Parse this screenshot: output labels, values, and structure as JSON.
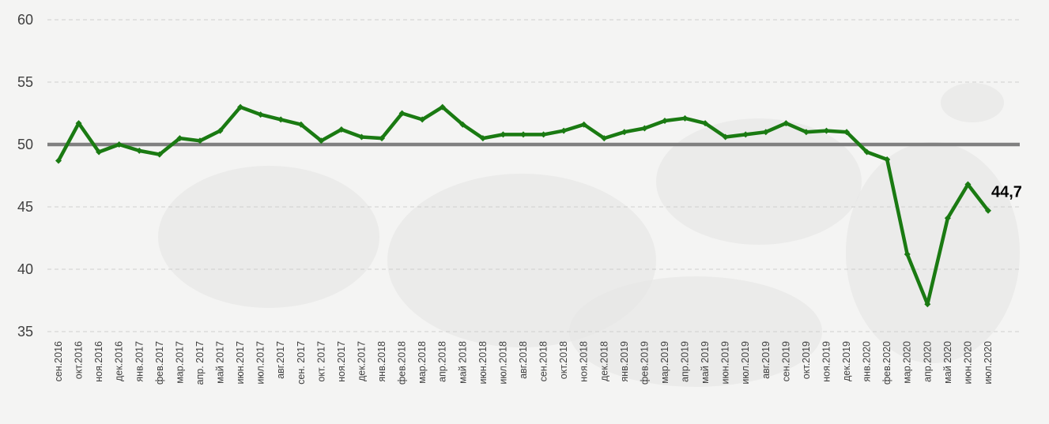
{
  "chart_data": {
    "type": "line",
    "title": "",
    "xlabel": "",
    "ylabel": "",
    "ylim": [
      35,
      60
    ],
    "yticks": [
      35,
      40,
      45,
      50,
      55,
      60
    ],
    "grid": true,
    "reference_line": 50,
    "colors": {
      "line": "#1a7a12",
      "reference": "#808080",
      "grid": "#cfcfcf",
      "text": "#404040"
    },
    "categories": [
      "сен.2016",
      "окт.2016",
      "ноя.2016",
      "дек.2016",
      "янв.2017",
      "фев.2017",
      "мар.2017",
      "апр. 2017",
      "май 2017",
      "июн.2017",
      "июл.2017",
      "авг.2017",
      "сен. 2017",
      "окт. 2017",
      "ноя.2017",
      "дек.2017",
      "янв.2018",
      "фев.2018",
      "мар.2018",
      "апр.2018",
      "май 2018",
      "июн.2018",
      "июл.2018",
      "авг.2018",
      "сен.2018",
      "окт.2018",
      "ноя.2018",
      "дек.2018",
      "янв.2019",
      "фев.2019",
      "мар.2019",
      "апр.2019",
      "май 2019",
      "июн.2019",
      "июл.2019",
      "авг.2019",
      "сен.2019",
      "окт.2019",
      "ноя.2019",
      "дек.2019",
      "янв.2020",
      "фев.2020",
      "мар.2020",
      "апр.2020",
      "май 2020",
      "июн.2020",
      "июл.2020"
    ],
    "series": [
      {
        "values": [
          48.7,
          51.7,
          49.4,
          50.0,
          49.5,
          49.2,
          50.5,
          50.3,
          51.1,
          53.0,
          52.4,
          52.0,
          51.6,
          50.3,
          51.2,
          50.6,
          50.5,
          52.5,
          52.0,
          53.0,
          51.6,
          50.5,
          50.8,
          50.8,
          50.8,
          51.1,
          51.6,
          50.5,
          51.0,
          51.3,
          51.9,
          52.1,
          51.7,
          50.6,
          50.8,
          51.0,
          51.7,
          51.0,
          51.1,
          51.0,
          49.4,
          48.8,
          41.2,
          37.2,
          44.1,
          46.8,
          44.7
        ]
      }
    ],
    "annotations": [
      {
        "category": "июл.2020",
        "text": "44,7"
      }
    ]
  }
}
